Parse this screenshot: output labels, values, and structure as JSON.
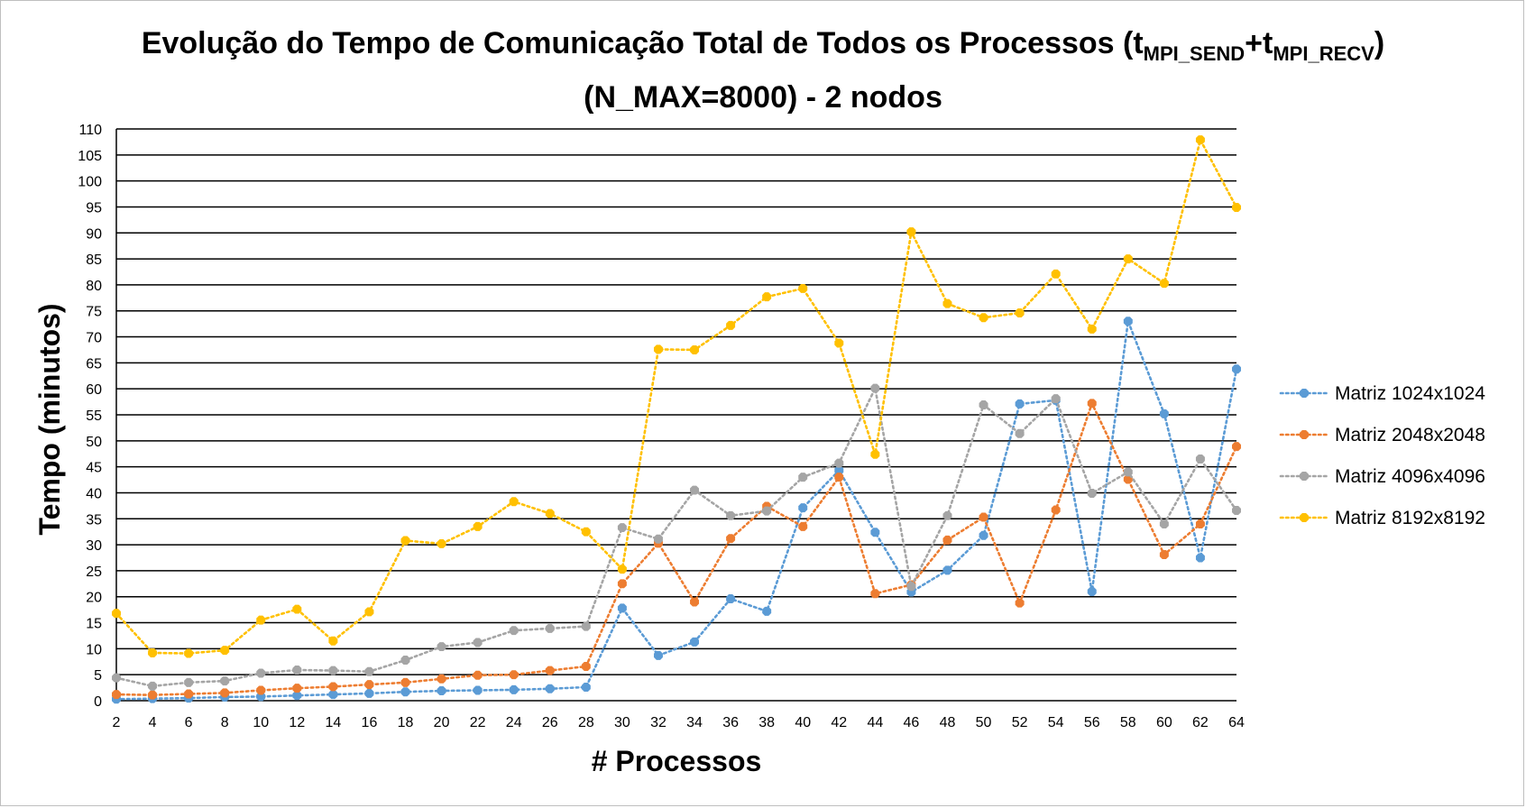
{
  "chart_data": {
    "type": "line",
    "title": {
      "prefix": "Evolução do Tempo de Comunicação Total de Todos os Processos (t",
      "sub1": "MPI_SEND",
      "mid": "+t",
      "sub2": "MPI_RECV",
      "suffix": ")",
      "line2": "(N_MAX=8000) - 2 nodos"
    },
    "xlabel": "# Processos",
    "ylabel": "Tempo (minutos)",
    "ylim": [
      0,
      110
    ],
    "ytick_step": 5,
    "grid": "horizontal",
    "legend_position": "right",
    "x": [
      2,
      4,
      6,
      8,
      10,
      12,
      14,
      16,
      18,
      20,
      22,
      24,
      26,
      28,
      30,
      32,
      34,
      36,
      38,
      40,
      42,
      44,
      46,
      48,
      50,
      52,
      54,
      56,
      58,
      60,
      62,
      64
    ],
    "series": [
      {
        "name": "Matriz 1024x1024",
        "color": "#5b9bd5",
        "values": [
          0.3,
          0.4,
          0.5,
          0.7,
          0.8,
          1.0,
          1.2,
          1.4,
          1.7,
          1.9,
          2.0,
          2.1,
          2.3,
          2.6,
          17.8,
          8.7,
          11.3,
          19.6,
          17.2,
          37.1,
          44.3,
          32.4,
          20.9,
          25.1,
          31.8,
          57.1,
          57.8,
          21.0,
          73.0,
          55.2,
          27.5,
          63.8
        ]
      },
      {
        "name": "Matriz 2048x2048",
        "color": "#ed7d31",
        "values": [
          1.2,
          1.1,
          1.3,
          1.5,
          2.0,
          2.4,
          2.7,
          3.1,
          3.5,
          4.2,
          4.9,
          5.0,
          5.8,
          6.6,
          22.5,
          30.3,
          19.0,
          31.2,
          37.4,
          33.5,
          43.0,
          20.6,
          22.3,
          30.9,
          35.3,
          18.8,
          36.7,
          57.2,
          42.6,
          28.1,
          34.0,
          48.9
        ]
      },
      {
        "name": "Matriz 4096x4096",
        "color": "#a5a5a5",
        "values": [
          4.4,
          2.8,
          3.5,
          3.8,
          5.3,
          5.9,
          5.8,
          5.6,
          7.8,
          10.4,
          11.2,
          13.5,
          13.9,
          14.3,
          33.3,
          31.1,
          40.5,
          35.6,
          36.5,
          43.0,
          45.7,
          60.1,
          22.0,
          35.6,
          56.9,
          51.4,
          58.1,
          39.9,
          44.0,
          34.0,
          46.5,
          36.6
        ]
      },
      {
        "name": "Matriz 8192x8192",
        "color": "#ffc000",
        "values": [
          16.8,
          9.2,
          9.1,
          9.7,
          15.5,
          17.6,
          11.5,
          17.1,
          30.8,
          30.2,
          33.5,
          38.3,
          36.0,
          32.5,
          25.3,
          67.6,
          67.5,
          72.2,
          77.7,
          79.3,
          68.8,
          47.4,
          90.2,
          76.4,
          73.7,
          74.6,
          82.1,
          71.5,
          85.0,
          80.3,
          107.9,
          94.9
        ]
      }
    ]
  }
}
